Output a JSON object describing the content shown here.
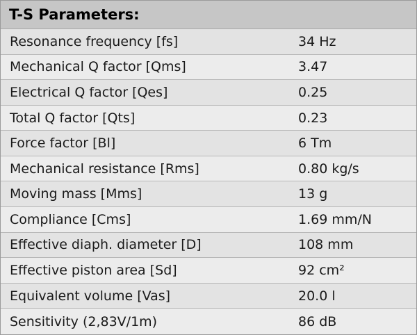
{
  "table": {
    "title": "T-S Parameters:",
    "rows": [
      [
        "Resonance frequency [fs]",
        "34 Hz"
      ],
      [
        "Mechanical Q factor [Qms]",
        "3.47"
      ],
      [
        "Electrical Q factor [Qes]",
        "0.25"
      ],
      [
        "Total Q factor [Qts]",
        "0.23"
      ],
      [
        "Force factor [Bl]",
        "6 Tm"
      ],
      [
        "Mechanical resistance [Rms]",
        "0.80 kg/s"
      ],
      [
        "Moving mass [Mms]",
        "13 g"
      ],
      [
        "Compliance [Cms]",
        "1.69 mm/N"
      ],
      [
        "Effective diaph. diameter [D]",
        "108 mm"
      ],
      [
        "Effective piston area [Sd]",
        "92 cm²"
      ],
      [
        "Equivalent volume [Vas]",
        "20.0 l"
      ],
      [
        "Sensitivity (2,83V/1m)",
        "86 dB"
      ]
    ]
  }
}
